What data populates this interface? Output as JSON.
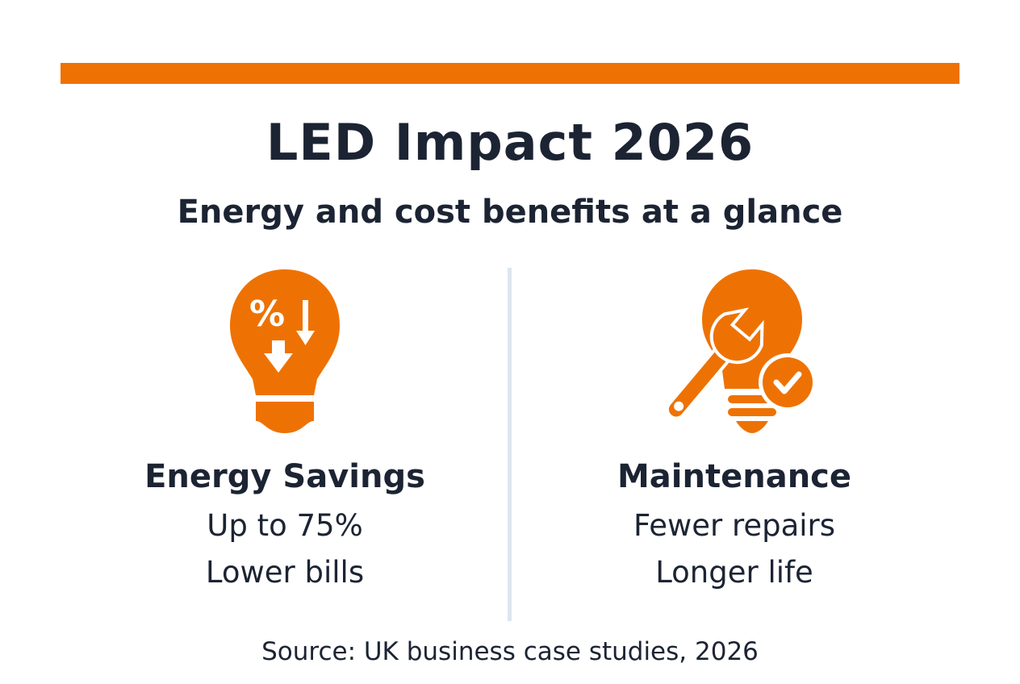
{
  "accent_color": "#ee7203",
  "text_color": "#1c2433",
  "header": {
    "title": "LED Impact 2026",
    "subtitle": "Energy and cost benefits at a glance"
  },
  "columns": [
    {
      "icon": "lightbulb-percent-down-icon",
      "heading": "Energy Savings",
      "lines": [
        "Up to 75%",
        "Lower bills"
      ]
    },
    {
      "icon": "lightbulb-wrench-check-icon",
      "heading": "Maintenance",
      "lines": [
        "Fewer repairs",
        "Longer life"
      ]
    }
  ],
  "source": "Source: UK business case studies, 2026"
}
